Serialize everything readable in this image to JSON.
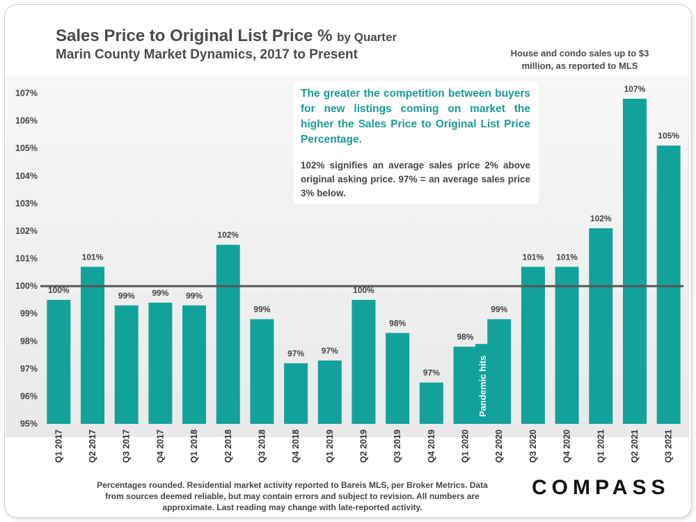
{
  "header": {
    "title": "Sales Price to Original List Price %",
    "title_suffix": "by Quarter",
    "subtitle": "Marin County Market Dynamics, 2017 to Present",
    "note": "House and condo sales up to $3 million, as reported to MLS"
  },
  "callout": {
    "main": "The greater the competition between buyers for new listings coming on market the higher the Sales Price to Original List Price Percentage.",
    "sub": "102% signifies an average sales price 2% above original asking price. 97% = an average sales price 3% below."
  },
  "footer": {
    "text": "Percentages rounded. Residential market activity reported to Bareis MLS, per Broker Metrics. Data from sources deemed reliable, but may contain errors and subject to revision. All numbers are approximate. Last reading may change with late-reported activity."
  },
  "logo": "COMPASS",
  "colors": {
    "bar": "#13a29b",
    "reference_line": "#555555",
    "label": "#444444"
  },
  "chart_data": {
    "type": "bar",
    "title": "Sales Price to Original List Price %",
    "categories": [
      "Q1 2017",
      "Q2 2017",
      "Q3 2017",
      "Q4 2017",
      "Q1 2018",
      "Q2 2018",
      "Q3 2018",
      "Q4 2018",
      "Q1 2019",
      "Q2 2019",
      "Q3 2019",
      "Q4 2019",
      "Q1 2020",
      "Q2 2020",
      "Q3 2020",
      "Q4 2020",
      "Q1 2021",
      "Q2 2021",
      "Q3 2021"
    ],
    "values": [
      99.5,
      100.7,
      99.3,
      99.4,
      99.3,
      101.5,
      98.8,
      97.2,
      97.3,
      99.5,
      98.3,
      96.5,
      97.8,
      98.8,
      100.7,
      100.7,
      102.1,
      106.8,
      105.1
    ],
    "labels": [
      "100%",
      "101%",
      "99%",
      "99%",
      "99%",
      "102%",
      "99%",
      "97%",
      "97%",
      "100%",
      "98%",
      "97%",
      "98%",
      "99%",
      "101%",
      "101%",
      "102%",
      "107%",
      "105%"
    ],
    "ylim": [
      95,
      107
    ],
    "yticks": [
      "95%",
      "96%",
      "97%",
      "98%",
      "99%",
      "100%",
      "101%",
      "102%",
      "103%",
      "104%",
      "105%",
      "106%",
      "107%"
    ],
    "reference_line": 100,
    "annotation": {
      "text": "Pandemic hits",
      "value": 97.9,
      "position_between": [
        "Q1 2020",
        "Q2 2020"
      ]
    },
    "xlabel": "",
    "ylabel": ""
  }
}
